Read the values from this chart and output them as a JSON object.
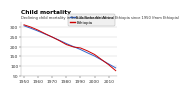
{
  "title": "Child mortality",
  "subtitle": "Declining child mortality in Sub-Saharan Africa and Ethiopia since 1950 (from Ethiopia)",
  "fig_bg_color": "#ffffff",
  "plot_bg_color": "#ffffff",
  "grid_color": "#cccccc",
  "years": [
    1950,
    1955,
    1960,
    1965,
    1970,
    1975,
    1980,
    1985,
    1990,
    1995,
    2000,
    2005,
    2010,
    2015
  ],
  "ssa_values": [
    305,
    292,
    278,
    263,
    248,
    232,
    215,
    200,
    185,
    168,
    152,
    132,
    112,
    92
  ],
  "eth_values": [
    310,
    298,
    283,
    265,
    248,
    230,
    210,
    198,
    193,
    178,
    160,
    134,
    108,
    78
  ],
  "ssa_color": "#3366cc",
  "eth_color": "#cc0000",
  "ylim": [
    50,
    325
  ],
  "xlim": [
    1948,
    2016
  ],
  "yticks": [
    50,
    100,
    150,
    200,
    250,
    300
  ],
  "xticks": [
    1950,
    1960,
    1970,
    1980,
    1990,
    2000,
    2010
  ],
  "legend_ssa": "Sub-Saharan Africa",
  "legend_eth": "Ethiopia",
  "title_color": "#000000",
  "subtitle_color": "#333333",
  "tick_color": "#333333",
  "tick_fontsize": 3.2,
  "title_fontsize": 4.2,
  "subtitle_fontsize": 2.6,
  "legend_fontsize": 2.8,
  "line_width": 0.7
}
